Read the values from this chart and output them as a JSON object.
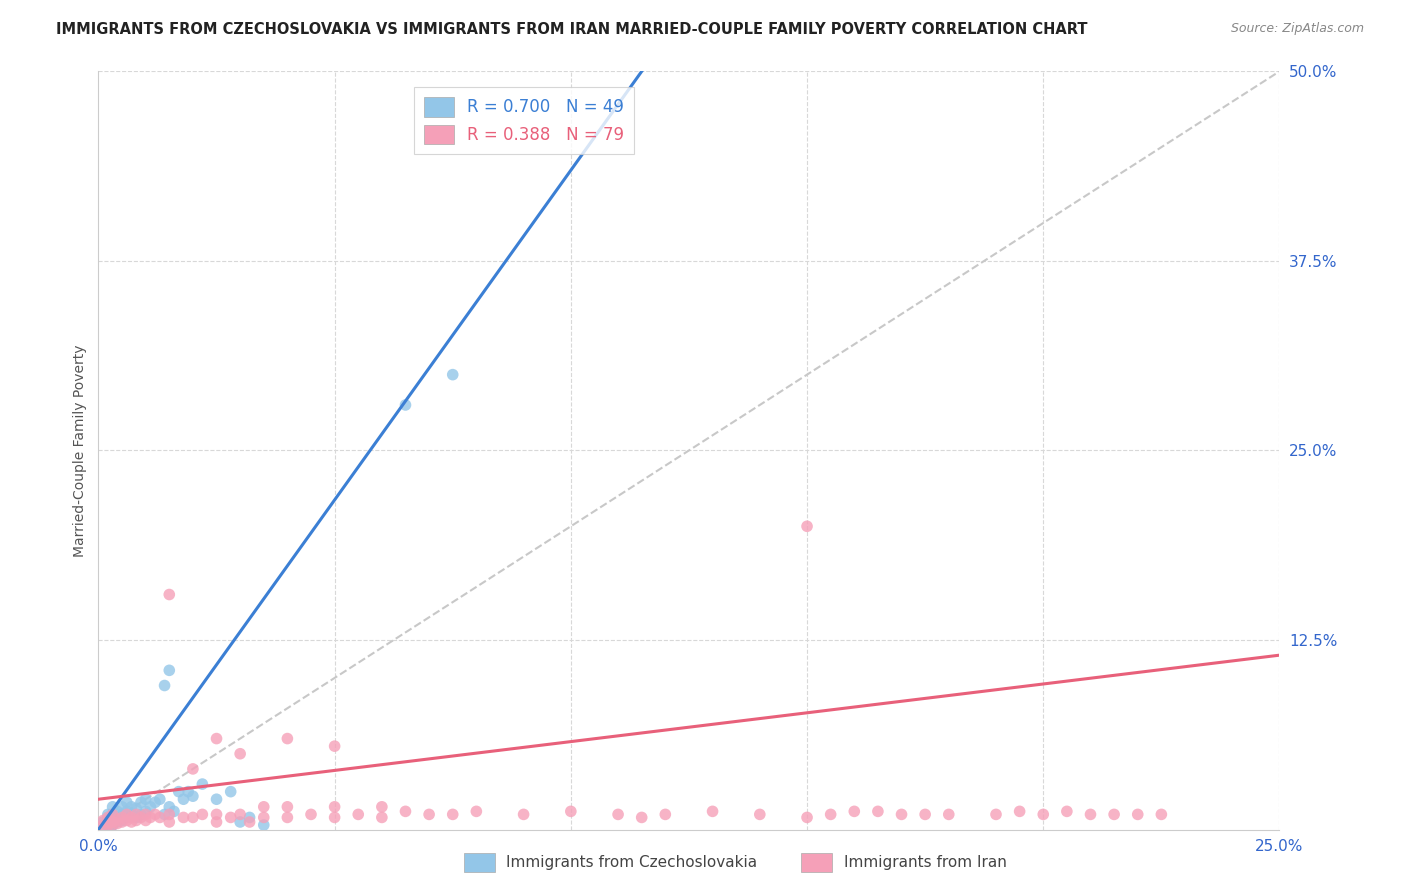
{
  "title": "IMMIGRANTS FROM CZECHOSLOVAKIA VS IMMIGRANTS FROM IRAN MARRIED-COUPLE FAMILY POVERTY CORRELATION CHART",
  "source": "Source: ZipAtlas.com",
  "ylabel": "Married-Couple Family Poverty",
  "xlim": [
    0.0,
    0.25
  ],
  "ylim": [
    0.0,
    0.5
  ],
  "xticks": [
    0.0,
    0.05,
    0.1,
    0.15,
    0.2,
    0.25
  ],
  "xtick_labels": [
    "0.0%",
    "",
    "",
    "",
    "",
    "25.0%"
  ],
  "ytick_labels_right": [
    "12.5%",
    "25.0%",
    "37.5%",
    "50.0%"
  ],
  "yticks_right": [
    0.125,
    0.25,
    0.375,
    0.5
  ],
  "blue_color": "#93c6e8",
  "pink_color": "#f5a0b8",
  "blue_line_color": "#3b7fd4",
  "pink_line_color": "#e8607a",
  "ref_line_color": "#c8c8c8",
  "background_color": "#ffffff",
  "grid_color": "#d8d8d8",
  "axis_label_color": "#3366cc",
  "title_color": "#222222",
  "ylabel_color": "#555555",
  "source_color": "#888888",
  "R_blue": 0.7,
  "N_blue": 49,
  "R_pink": 0.388,
  "N_pink": 79,
  "blue_line_x": [
    0.0,
    0.115
  ],
  "blue_line_y": [
    0.0,
    0.5
  ],
  "pink_line_x": [
    0.0,
    0.25
  ],
  "pink_line_y": [
    0.02,
    0.115
  ],
  "ref_line_x": [
    0.0,
    0.25
  ],
  "ref_line_y": [
    0.0,
    0.5
  ],
  "blue_x": [
    0.001,
    0.001,
    0.002,
    0.002,
    0.002,
    0.002,
    0.003,
    0.003,
    0.003,
    0.003,
    0.004,
    0.004,
    0.004,
    0.005,
    0.005,
    0.005,
    0.006,
    0.006,
    0.006,
    0.007,
    0.007,
    0.008,
    0.008,
    0.009,
    0.009,
    0.01,
    0.01,
    0.011,
    0.012,
    0.013,
    0.014,
    0.015,
    0.016,
    0.017,
    0.018,
    0.019,
    0.02,
    0.022,
    0.025,
    0.028,
    0.014,
    0.015,
    0.03,
    0.032,
    0.035,
    0.003,
    0.003,
    0.065,
    0.075
  ],
  "blue_y": [
    0.002,
    0.005,
    0.003,
    0.006,
    0.008,
    0.01,
    0.004,
    0.007,
    0.01,
    0.015,
    0.005,
    0.008,
    0.012,
    0.006,
    0.01,
    0.015,
    0.008,
    0.012,
    0.018,
    0.01,
    0.015,
    0.008,
    0.014,
    0.01,
    0.018,
    0.012,
    0.02,
    0.015,
    0.018,
    0.02,
    0.01,
    0.015,
    0.012,
    0.025,
    0.02,
    0.025,
    0.022,
    0.03,
    0.02,
    0.025,
    0.095,
    0.105,
    0.005,
    0.008,
    0.003,
    0.003,
    0.003,
    0.28,
    0.3
  ],
  "pink_x": [
    0.001,
    0.001,
    0.002,
    0.002,
    0.003,
    0.003,
    0.003,
    0.004,
    0.004,
    0.005,
    0.005,
    0.006,
    0.006,
    0.007,
    0.007,
    0.008,
    0.008,
    0.009,
    0.01,
    0.01,
    0.011,
    0.012,
    0.013,
    0.015,
    0.015,
    0.018,
    0.02,
    0.022,
    0.025,
    0.025,
    0.028,
    0.03,
    0.032,
    0.035,
    0.035,
    0.04,
    0.04,
    0.045,
    0.05,
    0.05,
    0.055,
    0.06,
    0.06,
    0.065,
    0.07,
    0.075,
    0.08,
    0.09,
    0.1,
    0.11,
    0.115,
    0.12,
    0.13,
    0.14,
    0.15,
    0.155,
    0.16,
    0.17,
    0.175,
    0.18,
    0.19,
    0.195,
    0.2,
    0.205,
    0.21,
    0.215,
    0.22,
    0.225,
    0.165,
    0.002,
    0.002,
    0.003,
    0.015,
    0.02,
    0.025,
    0.03,
    0.04,
    0.05,
    0.15
  ],
  "pink_y": [
    0.003,
    0.006,
    0.004,
    0.008,
    0.003,
    0.005,
    0.01,
    0.004,
    0.007,
    0.005,
    0.008,
    0.006,
    0.01,
    0.005,
    0.008,
    0.006,
    0.01,
    0.008,
    0.006,
    0.01,
    0.008,
    0.01,
    0.008,
    0.005,
    0.01,
    0.008,
    0.008,
    0.01,
    0.005,
    0.01,
    0.008,
    0.01,
    0.005,
    0.008,
    0.015,
    0.008,
    0.015,
    0.01,
    0.008,
    0.015,
    0.01,
    0.008,
    0.015,
    0.012,
    0.01,
    0.01,
    0.012,
    0.01,
    0.012,
    0.01,
    0.008,
    0.01,
    0.012,
    0.01,
    0.008,
    0.01,
    0.012,
    0.01,
    0.01,
    0.01,
    0.01,
    0.012,
    0.01,
    0.012,
    0.01,
    0.01,
    0.01,
    0.01,
    0.012,
    0.003,
    0.005,
    0.005,
    0.155,
    0.04,
    0.06,
    0.05,
    0.06,
    0.055,
    0.2
  ]
}
